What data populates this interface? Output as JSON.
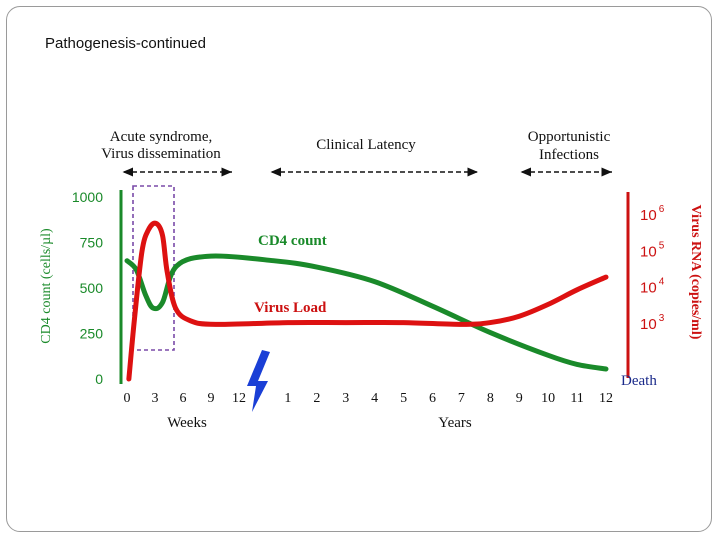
{
  "slide": {
    "title": "Pathogenesis-continued"
  },
  "chart_data": {
    "type": "line",
    "phases": [
      {
        "line1": "Acute syndrome,",
        "line2": "Virus dissemination"
      },
      {
        "line1": "Clinical Latency",
        "line2": ""
      },
      {
        "line1": "Opportunistic",
        "line2": "Infections"
      }
    ],
    "left_axis": {
      "label": "CD4 count (cells/µl)",
      "ticks": [
        "1000",
        "750",
        "500",
        "250",
        "0"
      ],
      "tick_values": [
        1000,
        750,
        500,
        250,
        0
      ],
      "range": [
        0,
        1000
      ],
      "color": "#1a8a2a"
    },
    "right_axis": {
      "label": "Virus RNA (copies/ml)",
      "ticks": [
        {
          "base": "10",
          "exp": "6"
        },
        {
          "base": "10",
          "exp": "5"
        },
        {
          "base": "10",
          "exp": "4"
        },
        {
          "base": "10",
          "exp": "3"
        }
      ],
      "log_values": [
        6,
        5,
        4,
        3
      ],
      "color": "#cc1111"
    },
    "x_weeks": {
      "label": "Weeks",
      "ticks": [
        "0",
        "3",
        "6",
        "9",
        "12"
      ],
      "values": [
        0,
        3,
        6,
        9,
        12
      ],
      "range": [
        0,
        12
      ]
    },
    "x_years": {
      "label": "Years",
      "ticks": [
        "1",
        "2",
        "3",
        "4",
        "5",
        "6",
        "7",
        "8",
        "9",
        "10",
        "11",
        "12"
      ],
      "values": [
        1,
        2,
        3,
        4,
        5,
        6,
        7,
        8,
        9,
        10,
        11,
        12
      ],
      "range": [
        0,
        12
      ]
    },
    "series": [
      {
        "name": "CD4 count",
        "color": "#1a8a2a",
        "points": [
          {
            "scale": "weeks",
            "x": 0,
            "y": 650
          },
          {
            "scale": "weeks",
            "x": 1,
            "y": 600
          },
          {
            "scale": "weeks",
            "x": 2,
            "y": 460
          },
          {
            "scale": "weeks",
            "x": 2.8,
            "y": 390
          },
          {
            "scale": "weeks",
            "x": 3.8,
            "y": 420
          },
          {
            "scale": "weeks",
            "x": 5.3,
            "y": 620
          },
          {
            "scale": "weeks",
            "x": 9,
            "y": 675
          },
          {
            "scale": "years",
            "x": 0.5,
            "y": 650
          },
          {
            "scale": "years",
            "x": 2,
            "y": 615
          },
          {
            "scale": "years",
            "x": 4,
            "y": 535
          },
          {
            "scale": "years",
            "x": 6,
            "y": 400
          },
          {
            "scale": "years",
            "x": 8,
            "y": 255
          },
          {
            "scale": "years",
            "x": 10,
            "y": 130
          },
          {
            "scale": "years",
            "x": 11,
            "y": 80
          },
          {
            "scale": "years",
            "x": 12,
            "y": 55
          }
        ]
      },
      {
        "name": "Virus Load",
        "color": "#dd1111",
        "points": [
          {
            "scale": "weeks",
            "x": 0.2,
            "y": 0
          },
          {
            "scale": "weeks",
            "x": 0.8,
            "y": 330
          },
          {
            "scale": "weeks",
            "x": 1.6,
            "y": 700
          },
          {
            "scale": "weeks",
            "x": 2.3,
            "y": 820
          },
          {
            "scale": "weeks",
            "x": 3.1,
            "y": 855
          },
          {
            "scale": "weeks",
            "x": 3.8,
            "y": 790
          },
          {
            "scale": "weeks",
            "x": 4.3,
            "y": 590
          },
          {
            "scale": "weeks",
            "x": 5.2,
            "y": 390
          },
          {
            "scale": "weeks",
            "x": 6.8,
            "y": 320
          },
          {
            "scale": "weeks",
            "x": 9.5,
            "y": 300
          },
          {
            "scale": "years",
            "x": 1,
            "y": 310
          },
          {
            "scale": "years",
            "x": 3,
            "y": 310
          },
          {
            "scale": "years",
            "x": 5,
            "y": 310
          },
          {
            "scale": "years",
            "x": 7,
            "y": 300
          },
          {
            "scale": "years",
            "x": 8,
            "y": 310
          },
          {
            "scale": "years",
            "x": 9,
            "y": 345
          },
          {
            "scale": "years",
            "x": 10,
            "y": 410
          },
          {
            "scale": "years",
            "x": 11,
            "y": 490
          },
          {
            "scale": "years",
            "x": 12,
            "y": 560
          }
        ]
      }
    ],
    "annotations": {
      "cd4_label": "CD4 count",
      "virus_label": "Virus Load",
      "end_label": "Death"
    },
    "colors": {
      "cd4": "#1a8a2a",
      "virus": "#dd1111",
      "highlight": "#7a4aa8",
      "break": "#1a3fd6"
    }
  }
}
